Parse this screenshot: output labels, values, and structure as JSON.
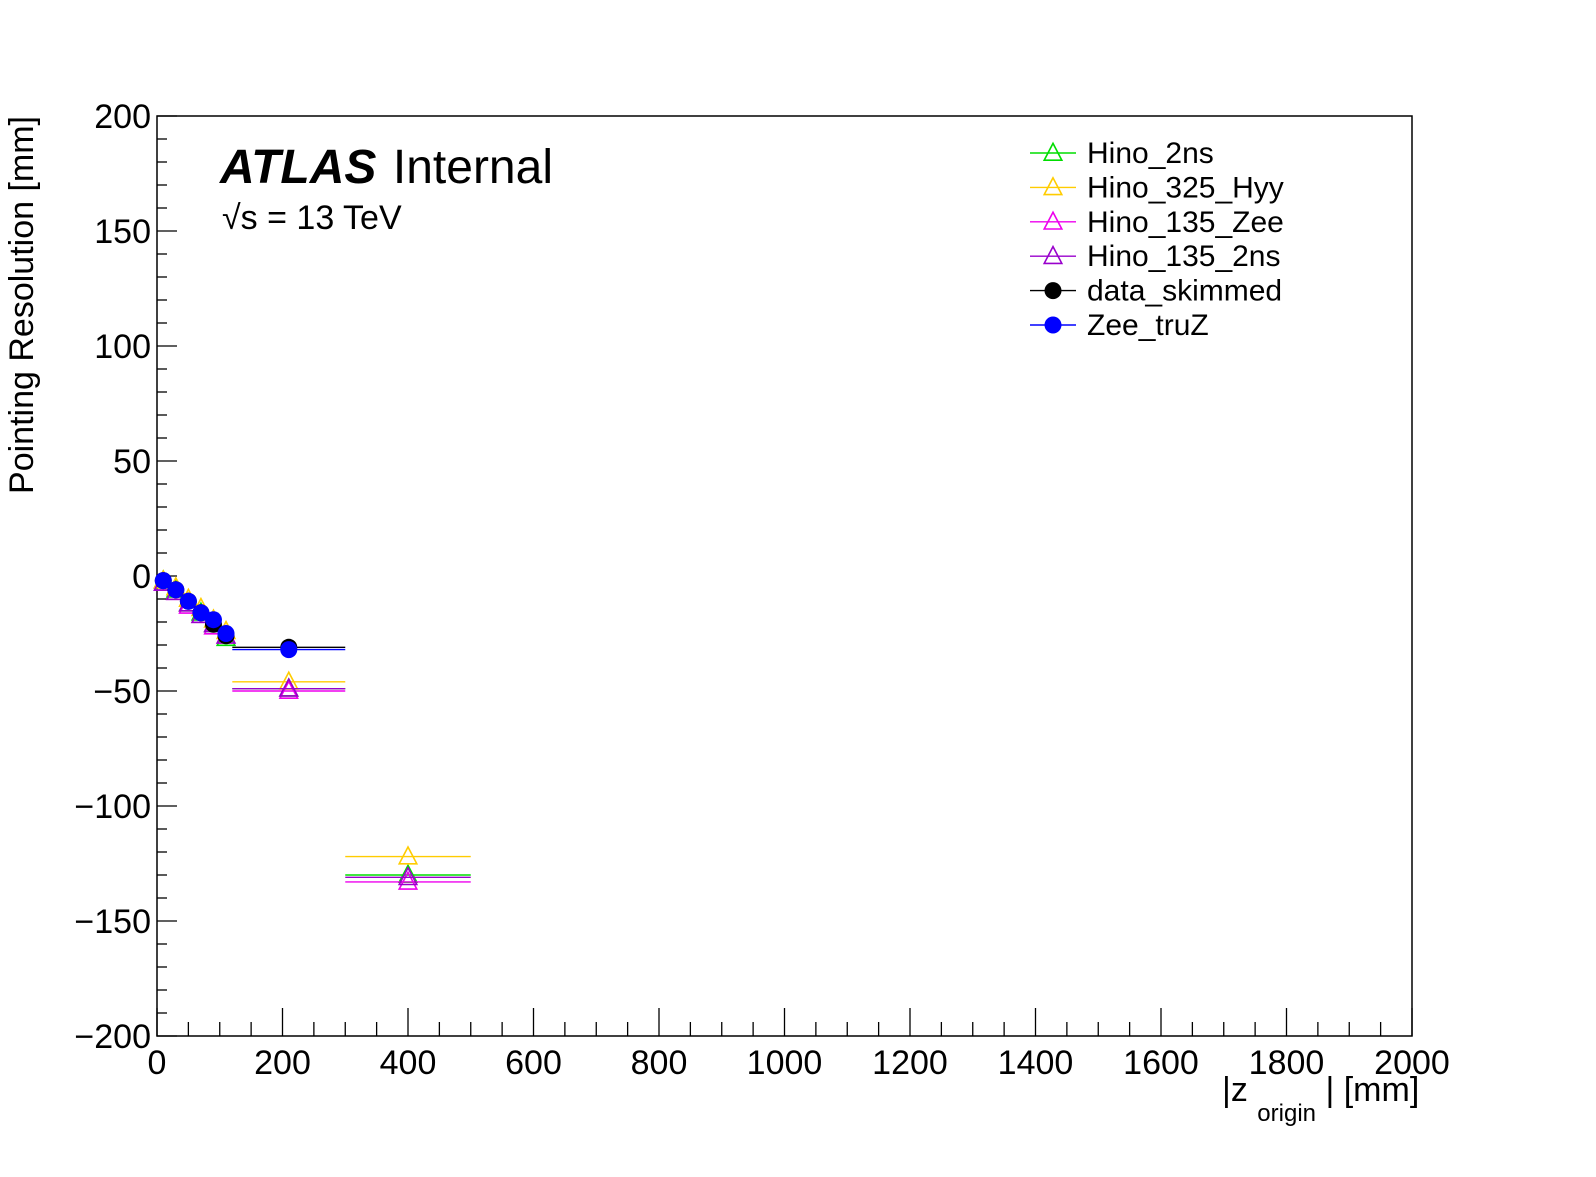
{
  "chart_data": {
    "type": "scatter",
    "title": "",
    "xlabel": {
      "main": "|z",
      "sub": "origin",
      "tail": "| [mm]"
    },
    "ylabel": "Pointing Resolution [mm]",
    "xlim": [
      0,
      2000
    ],
    "ylim": [
      -200,
      200
    ],
    "x_ticks": [
      "0",
      "200",
      "400",
      "600",
      "800",
      "1000",
      "1200",
      "1400",
      "1600",
      "1800",
      "2000"
    ],
    "y_ticks": [
      "200",
      "150",
      "100",
      "50",
      "0",
      "−50",
      "−100",
      "−150",
      "−200"
    ],
    "x_tick_values": [
      0,
      200,
      400,
      600,
      800,
      1000,
      1200,
      1400,
      1600,
      1800,
      2000
    ],
    "y_tick_values": [
      200,
      150,
      100,
      50,
      0,
      -50,
      -100,
      -150,
      -200
    ],
    "annotations": {
      "experiment": "ATLAS",
      "status": "Internal",
      "energy": "√s = 13 TeV"
    },
    "legend_position": "top-right",
    "series": [
      {
        "name": "Hino_2ns",
        "color": "#00dd00",
        "marker": "open-triangle",
        "points": [
          {
            "x": 10,
            "y": -2,
            "xlo": 0,
            "xhi": 20
          },
          {
            "x": 30,
            "y": -6,
            "xlo": 20,
            "xhi": 40
          },
          {
            "x": 50,
            "y": -12,
            "xlo": 40,
            "xhi": 60
          },
          {
            "x": 70,
            "y": -16,
            "xlo": 60,
            "xhi": 80
          },
          {
            "x": 90,
            "y": -21,
            "xlo": 80,
            "xhi": 100
          },
          {
            "x": 110,
            "y": -27,
            "xlo": 100,
            "xhi": 120
          },
          {
            "x": 210,
            "y": -49,
            "xlo": 120,
            "xhi": 300
          },
          {
            "x": 400,
            "y": -130,
            "xlo": 300,
            "xhi": 500
          }
        ]
      },
      {
        "name": "Hino_325_Hyy",
        "color": "#ffcc00",
        "marker": "open-triangle",
        "points": [
          {
            "x": 10,
            "y": -2,
            "xlo": 0,
            "xhi": 20
          },
          {
            "x": 30,
            "y": -5,
            "xlo": 20,
            "xhi": 40
          },
          {
            "x": 50,
            "y": -10,
            "xlo": 40,
            "xhi": 60
          },
          {
            "x": 70,
            "y": -14,
            "xlo": 60,
            "xhi": 80
          },
          {
            "x": 90,
            "y": -19,
            "xlo": 80,
            "xhi": 100
          },
          {
            "x": 110,
            "y": -24,
            "xlo": 100,
            "xhi": 120
          },
          {
            "x": 210,
            "y": -46,
            "xlo": 120,
            "xhi": 300
          },
          {
            "x": 400,
            "y": -122,
            "xlo": 300,
            "xhi": 500
          }
        ]
      },
      {
        "name": "Hino_135_Zee",
        "color": "#ee00ee",
        "marker": "open-triangle",
        "points": [
          {
            "x": 10,
            "y": -3,
            "xlo": 0,
            "xhi": 20
          },
          {
            "x": 30,
            "y": -7,
            "xlo": 20,
            "xhi": 40
          },
          {
            "x": 50,
            "y": -13,
            "xlo": 40,
            "xhi": 60
          },
          {
            "x": 70,
            "y": -17,
            "xlo": 60,
            "xhi": 80
          },
          {
            "x": 90,
            "y": -22,
            "xlo": 80,
            "xhi": 100
          },
          {
            "x": 110,
            "y": -26,
            "xlo": 100,
            "xhi": 120
          },
          {
            "x": 210,
            "y": -50,
            "xlo": 120,
            "xhi": 300
          },
          {
            "x": 400,
            "y": -133,
            "xlo": 300,
            "xhi": 500
          }
        ]
      },
      {
        "name": "Hino_135_2ns",
        "color": "#9900cc",
        "marker": "open-triangle",
        "points": [
          {
            "x": 10,
            "y": -3,
            "xlo": 0,
            "xhi": 20
          },
          {
            "x": 30,
            "y": -7,
            "xlo": 20,
            "xhi": 40
          },
          {
            "x": 50,
            "y": -12,
            "xlo": 40,
            "xhi": 60
          },
          {
            "x": 70,
            "y": -17,
            "xlo": 60,
            "xhi": 80
          },
          {
            "x": 90,
            "y": -21,
            "xlo": 80,
            "xhi": 100
          },
          {
            "x": 110,
            "y": -26,
            "xlo": 100,
            "xhi": 120
          },
          {
            "x": 210,
            "y": -49,
            "xlo": 120,
            "xhi": 300
          },
          {
            "x": 400,
            "y": -131,
            "xlo": 300,
            "xhi": 500
          }
        ]
      },
      {
        "name": "data_skimmed",
        "color": "#000000",
        "marker": "filled-circle",
        "points": [
          {
            "x": 10,
            "y": -2,
            "xlo": 0,
            "xhi": 20
          },
          {
            "x": 30,
            "y": -6,
            "xlo": 20,
            "xhi": 40
          },
          {
            "x": 50,
            "y": -11,
            "xlo": 40,
            "xhi": 60
          },
          {
            "x": 70,
            "y": -16,
            "xlo": 60,
            "xhi": 80
          },
          {
            "x": 90,
            "y": -21,
            "xlo": 80,
            "xhi": 100
          },
          {
            "x": 110,
            "y": -26,
            "xlo": 100,
            "xhi": 120
          },
          {
            "x": 210,
            "y": -31,
            "xlo": 120,
            "xhi": 300
          }
        ]
      },
      {
        "name": "Zee_truZ",
        "color": "#0000ff",
        "marker": "filled-circle",
        "points": [
          {
            "x": 10,
            "y": -2,
            "xlo": 0,
            "xhi": 20
          },
          {
            "x": 30,
            "y": -6,
            "xlo": 20,
            "xhi": 40
          },
          {
            "x": 50,
            "y": -11,
            "xlo": 40,
            "xhi": 60
          },
          {
            "x": 70,
            "y": -16,
            "xlo": 60,
            "xhi": 80
          },
          {
            "x": 90,
            "y": -19,
            "xlo": 80,
            "xhi": 100
          },
          {
            "x": 110,
            "y": -25,
            "xlo": 100,
            "xhi": 120
          },
          {
            "x": 210,
            "y": -32,
            "xlo": 120,
            "xhi": 300
          }
        ]
      }
    ]
  }
}
